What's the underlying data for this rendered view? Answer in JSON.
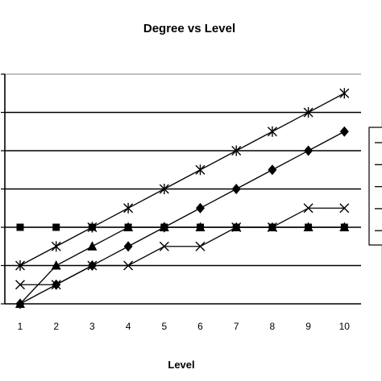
{
  "chart_data": {
    "type": "line",
    "title": "Degree vs Level",
    "xlabel": "Level",
    "ylabel": "",
    "x": [
      1,
      2,
      3,
      4,
      5,
      6,
      7,
      8,
      9,
      10
    ],
    "xlim": [
      1,
      10
    ],
    "ylim": [
      0,
      6
    ],
    "grid": true,
    "legend": "right",
    "series": [
      {
        "marker": "asterisk",
        "values": [
          1,
          1.5,
          2,
          2.5,
          3,
          3.5,
          4,
          4.5,
          5,
          5.5
        ]
      },
      {
        "marker": "diamond",
        "values": [
          0,
          0.5,
          1,
          1.5,
          2,
          2.5,
          3,
          3.5,
          4,
          4.5
        ]
      },
      {
        "marker": "x",
        "values": [
          0.5,
          0.5,
          1,
          1,
          1.5,
          1.5,
          2,
          2,
          2.5,
          2.5
        ]
      },
      {
        "marker": "square",
        "values": [
          2,
          2,
          2,
          2,
          2,
          2,
          2,
          2,
          2,
          2
        ]
      },
      {
        "marker": "triangle",
        "values": [
          0,
          1,
          1.5,
          2,
          2,
          2,
          2,
          2,
          2,
          2
        ]
      }
    ]
  }
}
